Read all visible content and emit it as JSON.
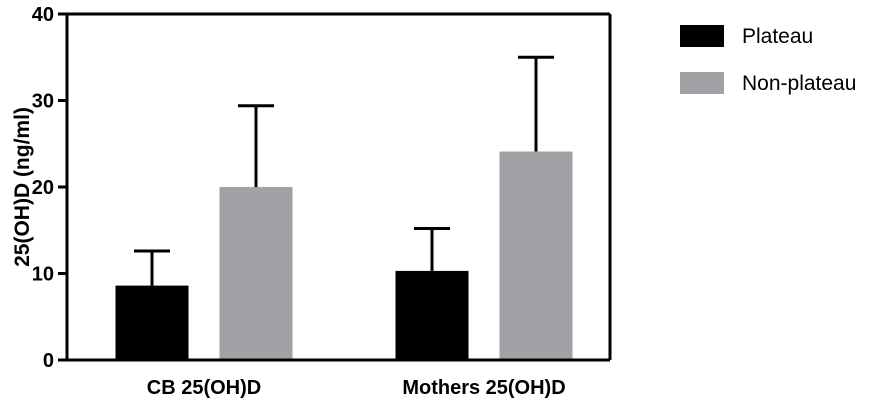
{
  "chart_data": {
    "type": "bar",
    "title": "",
    "xlabel": "",
    "ylabel": "25(OH)D (ng/ml)",
    "ylim": [
      0,
      40
    ],
    "yticks": [
      0,
      10,
      20,
      30,
      40
    ],
    "grid": false,
    "legend_position": "top-right",
    "categories": [
      "CB 25(OH)D",
      "Mothers 25(OH)D"
    ],
    "series": [
      {
        "name": "Plateau",
        "color": "#000000",
        "values": [
          8.6,
          10.3
        ],
        "errors": [
          4.0,
          4.9
        ]
      },
      {
        "name": "Non-plateau",
        "color": "#a2a2a6",
        "values": [
          20.0,
          24.1
        ],
        "errors": [
          9.4,
          10.9
        ]
      }
    ]
  }
}
